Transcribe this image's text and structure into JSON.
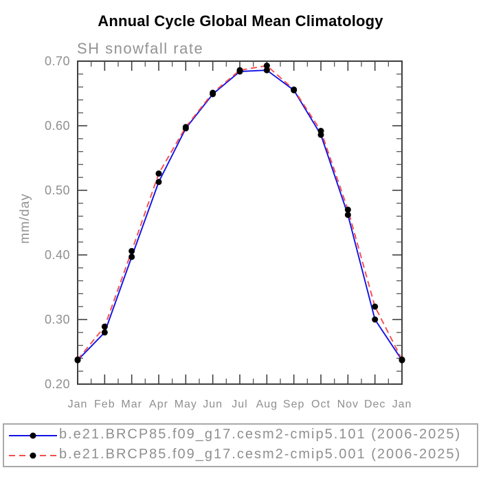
{
  "chart_data": {
    "type": "line",
    "title": "Annual Cycle Global Mean Climatology",
    "subtitle": "SH snowfall rate",
    "xlabel": "",
    "ylabel": "mm/day",
    "categories": [
      "Jan",
      "Feb",
      "Mar",
      "Apr",
      "May",
      "Jun",
      "Jul",
      "Aug",
      "Sep",
      "Oct",
      "Nov",
      "Dec",
      "Jan"
    ],
    "ylim": [
      0.2,
      0.7
    ],
    "yticks": [
      0.2,
      0.3,
      0.4,
      0.5,
      0.6,
      0.7
    ],
    "ytick_labels": [
      "0.20",
      "0.30",
      "0.40",
      "0.50",
      "0.60",
      "0.70"
    ],
    "y_minor_step": 0.02,
    "x_minor_ticks_between_months": 1,
    "grid": false,
    "legend_position": "bottom",
    "colors": {
      "axis": "#3f3f3f",
      "tick": "#555555",
      "label": "#8f8f8f",
      "marker": "#000000",
      "title": "#000000"
    },
    "series": [
      {
        "name": "b.e21.BRCP85.f09_g17.cesm2-cmip5.101 (2006-2025)",
        "color": "#1010e8",
        "line_style": "solid",
        "marker": "filled-circle",
        "values": [
          0.237,
          0.28,
          0.397,
          0.513,
          0.596,
          0.649,
          0.684,
          0.686,
          0.655,
          0.586,
          0.462,
          0.3,
          0.237
        ]
      },
      {
        "name": "b.e21.BRCP85.f09_g17.cesm2-cmip5.001 (2006-2025)",
        "color": "#f84a4a",
        "line_style": "dashed",
        "marker": "filled-circle",
        "values": [
          0.238,
          0.289,
          0.406,
          0.526,
          0.598,
          0.651,
          0.686,
          0.693,
          0.656,
          0.592,
          0.47,
          0.32,
          0.238
        ]
      }
    ]
  }
}
